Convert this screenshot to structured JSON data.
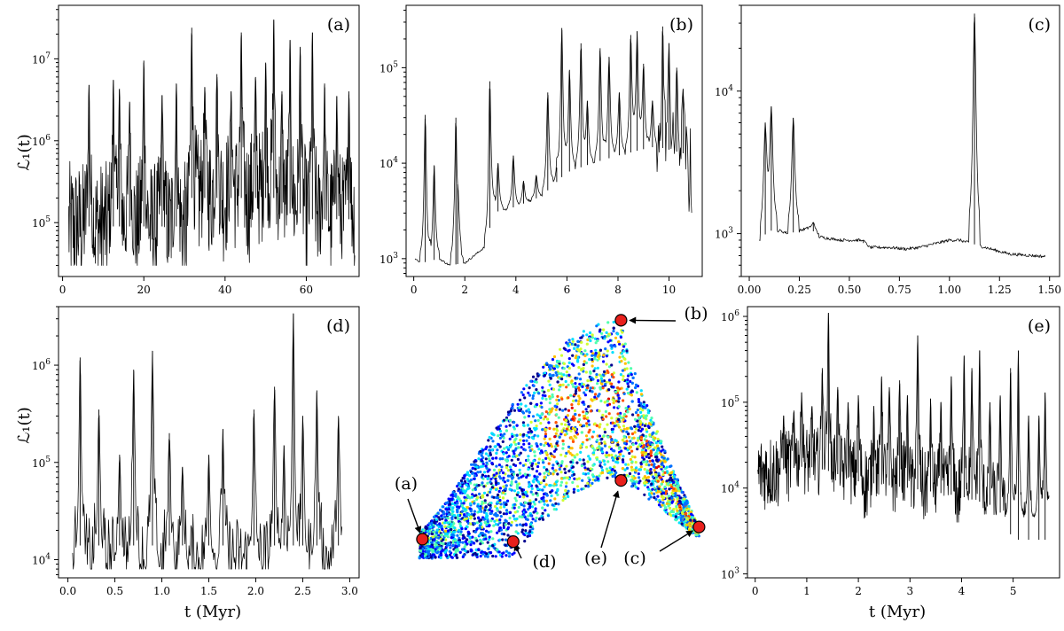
{
  "figure": {
    "xlabel": "t (Myr)",
    "ylabel": "ℒ₁(t)"
  },
  "chart_data": [
    {
      "id": "a",
      "type": "line",
      "label": "(a)",
      "xlim": [
        -1,
        73
      ],
      "xticks": [
        0,
        20,
        40,
        60
      ],
      "xticklabels": [
        "0",
        "20",
        "40",
        "60"
      ],
      "yscale": "log",
      "ylim": [
        22000,
        45000000
      ],
      "yticks": [
        100000,
        1000000,
        10000000
      ],
      "yticklabels": [
        "10^5",
        "10^6",
        "10^7"
      ],
      "series": {
        "x_range": [
          1.5,
          72
        ],
        "baseline": 130000,
        "floor": 30000,
        "noise_top": 1800000,
        "dense": true,
        "segments": [
          {
            "x": [
              1.5,
              31
            ],
            "median": 90000
          },
          {
            "x": [
              31,
              52
            ],
            "median": 200000
          },
          {
            "x": [
              52,
              60
            ],
            "median": 130000
          },
          {
            "x": [
              60,
              72
            ],
            "median": 110000
          }
        ],
        "spikes": [
          {
            "x": 6.5,
            "y": 4800000
          },
          {
            "x": 12.5,
            "y": 5500000
          },
          {
            "x": 14,
            "y": 4300000
          },
          {
            "x": 16.5,
            "y": 3000000
          },
          {
            "x": 20,
            "y": 9500000
          },
          {
            "x": 24.5,
            "y": 3600000
          },
          {
            "x": 28,
            "y": 5000000
          },
          {
            "x": 31.8,
            "y": 24000000
          },
          {
            "x": 35,
            "y": 4500000
          },
          {
            "x": 38,
            "y": 6500000
          },
          {
            "x": 41.5,
            "y": 4000000
          },
          {
            "x": 44,
            "y": 21000000
          },
          {
            "x": 47.5,
            "y": 6000000
          },
          {
            "x": 50,
            "y": 9000000
          },
          {
            "x": 52,
            "y": 30000000
          },
          {
            "x": 54,
            "y": 4000000
          },
          {
            "x": 56,
            "y": 17000000
          },
          {
            "x": 58.5,
            "y": 14000000
          },
          {
            "x": 61.5,
            "y": 21000000
          },
          {
            "x": 64.5,
            "y": 5000000
          },
          {
            "x": 67.5,
            "y": 3500000
          },
          {
            "x": 70.5,
            "y": 4000000
          }
        ]
      }
    },
    {
      "id": "b",
      "type": "line",
      "label": "(b)",
      "xlim": [
        -0.3,
        11.3
      ],
      "xticks": [
        0,
        2,
        4,
        6,
        8,
        10
      ],
      "xticklabels": [
        "0",
        "2",
        "4",
        "6",
        "8",
        "10"
      ],
      "yscale": "log",
      "ylim": [
        650,
        450000
      ],
      "yticks": [
        1000,
        10000,
        100000
      ],
      "yticklabels": [
        "10^3",
        "10^4",
        "10^5"
      ],
      "series": {
        "x_range": [
          0.05,
          10.9
        ],
        "baseline_pts": [
          [
            0.05,
            1000
          ],
          [
            0.3,
            900
          ],
          [
            1.0,
            1000
          ],
          [
            1.4,
            850
          ],
          [
            2.0,
            900
          ],
          [
            2.9,
            1400
          ],
          [
            3.05,
            3000
          ],
          [
            4,
            3500
          ],
          [
            5,
            4500
          ],
          [
            6,
            8000
          ],
          [
            7,
            10000
          ],
          [
            8,
            12000
          ],
          [
            9,
            14000
          ],
          [
            9.5,
            15000
          ],
          [
            10.9,
            12000
          ]
        ],
        "dense_region": {
          "x": [
            9.5,
            10.9
          ],
          "floor": 2500,
          "top": 25000
        },
        "spikes": [
          {
            "x": 0.45,
            "y": 32000
          },
          {
            "x": 0.8,
            "y": 9500
          },
          {
            "x": 1.65,
            "y": 30000
          },
          {
            "x": 1.72,
            "y": 6000
          },
          {
            "x": 2.98,
            "y": 72000
          },
          {
            "x": 3.3,
            "y": 10000
          },
          {
            "x": 3.9,
            "y": 12000
          },
          {
            "x": 4.3,
            "y": 6500
          },
          {
            "x": 4.8,
            "y": 7500
          },
          {
            "x": 5.25,
            "y": 55000
          },
          {
            "x": 5.6,
            "y": 9000
          },
          {
            "x": 5.8,
            "y": 260000
          },
          {
            "x": 6.1,
            "y": 95000
          },
          {
            "x": 6.55,
            "y": 180000
          },
          {
            "x": 6.8,
            "y": 45000
          },
          {
            "x": 7.3,
            "y": 160000
          },
          {
            "x": 7.65,
            "y": 130000
          },
          {
            "x": 8.05,
            "y": 55000
          },
          {
            "x": 8.5,
            "y": 220000
          },
          {
            "x": 8.75,
            "y": 240000
          },
          {
            "x": 9.0,
            "y": 110000
          },
          {
            "x": 9.35,
            "y": 45000
          },
          {
            "x": 9.75,
            "y": 270000
          },
          {
            "x": 10.0,
            "y": 180000
          },
          {
            "x": 10.3,
            "y": 100000
          },
          {
            "x": 10.55,
            "y": 60000
          }
        ]
      }
    },
    {
      "id": "c",
      "type": "line",
      "label": "(c)",
      "xlim": [
        -0.04,
        1.55
      ],
      "xticks": [
        0,
        0.25,
        0.5,
        0.75,
        1.0,
        1.25,
        1.5
      ],
      "xticklabels": [
        "0.00",
        "0.25",
        "0.50",
        "0.75",
        "1.00",
        "1.25",
        "1.50"
      ],
      "yscale": "log",
      "ylim": [
        500,
        40000
      ],
      "yticks": [
        1000,
        10000
      ],
      "yticklabels": [
        "10^3",
        "10^4"
      ],
      "series": {
        "x_range": [
          0.05,
          1.48
        ],
        "baseline_pts": [
          [
            0.05,
            900
          ],
          [
            0.1,
            1050
          ],
          [
            0.15,
            1050
          ],
          [
            0.2,
            1000
          ],
          [
            0.3,
            1100
          ],
          [
            0.35,
            950
          ],
          [
            0.45,
            900
          ],
          [
            0.55,
            900
          ],
          [
            0.6,
            800
          ],
          [
            0.7,
            800
          ],
          [
            0.78,
            780
          ],
          [
            0.85,
            800
          ],
          [
            1.0,
            900
          ],
          [
            1.05,
            900
          ],
          [
            1.25,
            750
          ],
          [
            1.3,
            720
          ],
          [
            1.48,
            690
          ]
        ],
        "spikes": [
          {
            "x": 0.08,
            "y": 6000
          },
          {
            "x": 0.11,
            "y": 7800
          },
          {
            "x": 0.22,
            "y": 6500
          },
          {
            "x": 0.32,
            "y": 1200
          },
          {
            "x": 0.43,
            "y": 900
          },
          {
            "x": 0.57,
            "y": 900
          },
          {
            "x": 1.125,
            "y": 35000
          }
        ]
      }
    },
    {
      "id": "d",
      "type": "line",
      "label": "(d)",
      "xlim": [
        -0.1,
        3.1
      ],
      "xticks": [
        0,
        0.5,
        1,
        1.5,
        2,
        2.5,
        3
      ],
      "xticklabels": [
        "0.0",
        "0.5",
        "1.0",
        "1.5",
        "2.0",
        "2.5",
        "3.0"
      ],
      "yscale": "log",
      "ylim": [
        6500,
        4000000
      ],
      "yticks": [
        10000,
        100000,
        1000000
      ],
      "yticklabels": [
        "10^4",
        "10^5",
        "10^6"
      ],
      "series": {
        "x_range": [
          0.05,
          2.92
        ],
        "baseline": 14000,
        "floor": 8000,
        "noise_top": 45000,
        "dense": false,
        "spikes": [
          {
            "x": 0.13,
            "y": 1200000
          },
          {
            "x": 0.33,
            "y": 350000
          },
          {
            "x": 0.55,
            "y": 120000
          },
          {
            "x": 0.7,
            "y": 900000
          },
          {
            "x": 0.9,
            "y": 1400000
          },
          {
            "x": 1.08,
            "y": 200000
          },
          {
            "x": 1.22,
            "y": 90000
          },
          {
            "x": 1.5,
            "y": 120000
          },
          {
            "x": 1.65,
            "y": 220000
          },
          {
            "x": 1.98,
            "y": 350000
          },
          {
            "x": 2.2,
            "y": 600000
          },
          {
            "x": 2.3,
            "y": 150000
          },
          {
            "x": 2.4,
            "y": 3400000
          },
          {
            "x": 2.5,
            "y": 300000
          },
          {
            "x": 2.65,
            "y": 550000
          },
          {
            "x": 2.88,
            "y": 300000
          }
        ]
      }
    },
    {
      "id": "e",
      "type": "line",
      "label": "(e)",
      "xlim": [
        -0.15,
        5.9
      ],
      "xticks": [
        0,
        1,
        2,
        3,
        4,
        5
      ],
      "xticklabels": [
        "0",
        "1",
        "2",
        "3",
        "4",
        "5"
      ],
      "yscale": "log",
      "ylim": [
        900,
        1300000
      ],
      "yticks": [
        1000,
        10000,
        100000,
        1000000
      ],
      "yticklabels": [
        "10^3",
        "10^4",
        "10^5",
        "10^6"
      ],
      "series": {
        "x_range": [
          0.05,
          5.7
        ],
        "floor": 4000,
        "noise_top": 40000,
        "dense": true,
        "baseline_pts": [
          [
            0.05,
            15000
          ],
          [
            1.0,
            18000
          ],
          [
            1.4,
            16000
          ],
          [
            2.0,
            12000
          ],
          [
            3.0,
            10000
          ],
          [
            4.0,
            8000
          ],
          [
            4.7,
            6000
          ],
          [
            5.0,
            2500
          ],
          [
            5.7,
            2500
          ]
        ],
        "spikes": [
          {
            "x": 0.55,
            "y": 70000
          },
          {
            "x": 0.75,
            "y": 80000
          },
          {
            "x": 0.9,
            "y": 130000
          },
          {
            "x": 1.1,
            "y": 90000
          },
          {
            "x": 1.3,
            "y": 250000
          },
          {
            "x": 1.42,
            "y": 1100000
          },
          {
            "x": 1.6,
            "y": 150000
          },
          {
            "x": 1.8,
            "y": 100000
          },
          {
            "x": 2.0,
            "y": 120000
          },
          {
            "x": 2.3,
            "y": 90000
          },
          {
            "x": 2.45,
            "y": 200000
          },
          {
            "x": 2.6,
            "y": 150000
          },
          {
            "x": 2.8,
            "y": 180000
          },
          {
            "x": 2.95,
            "y": 120000
          },
          {
            "x": 3.15,
            "y": 600000
          },
          {
            "x": 3.4,
            "y": 110000
          },
          {
            "x": 3.6,
            "y": 100000
          },
          {
            "x": 3.8,
            "y": 200000
          },
          {
            "x": 4.05,
            "y": 350000
          },
          {
            "x": 4.2,
            "y": 250000
          },
          {
            "x": 4.35,
            "y": 400000
          },
          {
            "x": 4.55,
            "y": 100000
          },
          {
            "x": 4.75,
            "y": 120000
          },
          {
            "x": 4.95,
            "y": 250000
          },
          {
            "x": 5.1,
            "y": 400000
          },
          {
            "x": 5.3,
            "y": 70000
          },
          {
            "x": 5.5,
            "y": 70000
          },
          {
            "x": 5.62,
            "y": 130000
          }
        ]
      }
    },
    {
      "id": "scatter",
      "type": "scatter",
      "description_points": "colored point cloud forming a curved arch with two lobes",
      "colormap": [
        "#00008f",
        "#0000ff",
        "#0070ff",
        "#00dfff",
        "#50ffaf",
        "#cfff30",
        "#ffbf00",
        "#ff5000",
        "#df0000"
      ],
      "markers": [
        {
          "label": "(a)",
          "u": 0.02,
          "v": 0.1
        },
        {
          "label": "(b)",
          "u": 0.72,
          "v": 0.995
        },
        {
          "label": "(c)",
          "u": 0.995,
          "v": 0.15
        },
        {
          "label": "(d)",
          "u": 0.34,
          "v": 0.09
        },
        {
          "label": "(e)",
          "u": 0.72,
          "v": 0.34
        }
      ]
    }
  ]
}
